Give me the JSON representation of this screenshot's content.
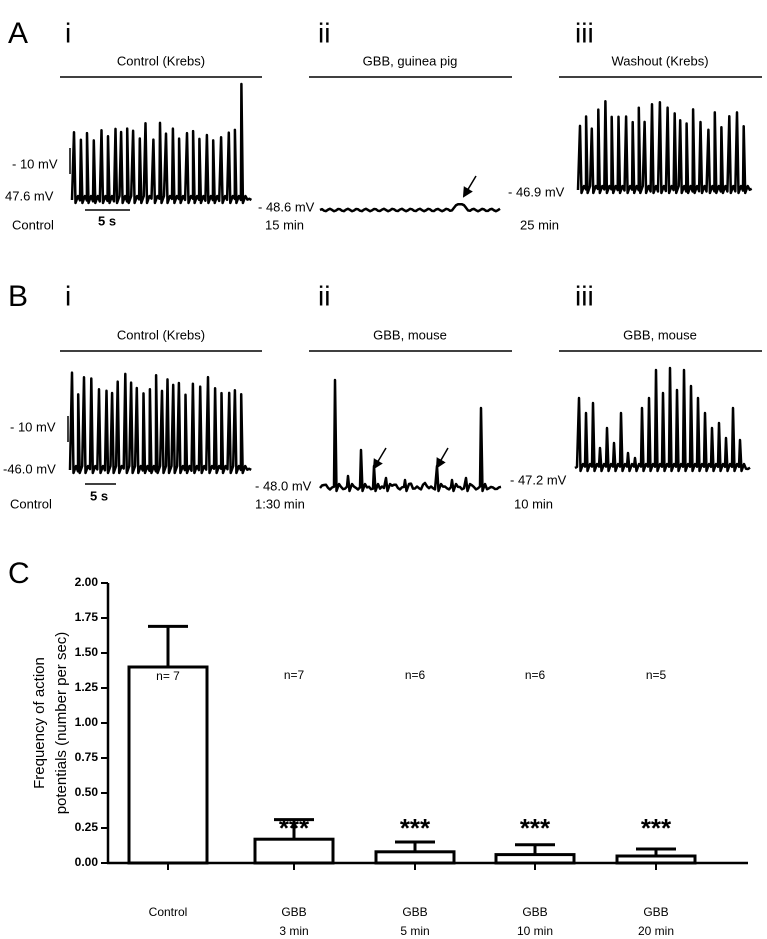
{
  "panels": [
    {
      "label": "A",
      "traces": [
        {
          "numeral": "i",
          "condition": "Control (Krebs)",
          "potential": "47.6 mV",
          "time": "Control",
          "scale_v": "- 10 mV",
          "scale_t": "5 s"
        },
        {
          "numeral": "ii",
          "condition": "GBB,  guinea pig",
          "potential": "- 48.6 mV",
          "time": "15 min"
        },
        {
          "numeral": "iii",
          "condition": "Washout (Krebs)",
          "potential": "- 46.9 mV",
          "time": "25 min"
        }
      ]
    },
    {
      "label": "B",
      "traces": [
        {
          "numeral": "i",
          "condition": "Control (Krebs)",
          "potential": "-46.0 mV",
          "time": "Control",
          "scale_v": "- 10 mV",
          "scale_t": "5 s"
        },
        {
          "numeral": "ii",
          "condition": "GBB, mouse",
          "potential": "- 48.0 mV",
          "time": "1:30 min"
        },
        {
          "numeral": "iii",
          "condition": "GBB, mouse",
          "potential": "- 47.2 mV",
          "time": "10 min"
        }
      ]
    }
  ],
  "chart_data": {
    "type": "bar",
    "panel_label": "C",
    "ylabel": [
      "Frequency of action",
      "potentials (number per sec)"
    ],
    "categories": [
      [
        "Control"
      ],
      [
        "GBB",
        "3 min"
      ],
      [
        "GBB",
        "5 min"
      ],
      [
        "GBB",
        "10 min"
      ],
      [
        "GBB",
        "20 min"
      ]
    ],
    "values": [
      1.4,
      0.17,
      0.08,
      0.06,
      0.05
    ],
    "errors": [
      0.29,
      0.14,
      0.07,
      0.07,
      0.05
    ],
    "n_labels": [
      "n= 7",
      "n=7",
      "n=6",
      "n=6",
      "n=5"
    ],
    "significance": [
      null,
      "***",
      "***",
      "***",
      "***"
    ],
    "color": "#ffffff",
    "ylim": [
      0,
      2
    ],
    "yticks": [
      {
        "value": 0,
        "label": "0.00"
      },
      {
        "value": 0.25,
        "label": "0.25"
      },
      {
        "value": 0.5,
        "label": "0.50"
      },
      {
        "value": 0.75,
        "label": "0.75"
      },
      {
        "value": 1,
        "label": "1.00"
      },
      {
        "value": 1.25,
        "label": "1.25"
      },
      {
        "value": 1.5,
        "label": "1.50"
      },
      {
        "value": 1.75,
        "label": "1.75"
      },
      {
        "value": 2,
        "label": "2.00"
      }
    ]
  }
}
